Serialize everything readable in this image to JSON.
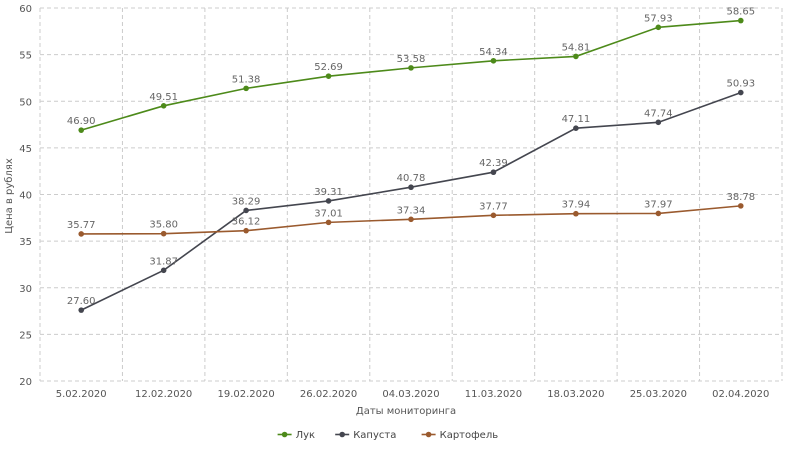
{
  "chart_data": {
    "type": "line",
    "title": "",
    "xlabel": "Даты мониторинга",
    "ylabel": "Цена в рублях",
    "ylim": [
      20,
      60
    ],
    "yticks": [
      20,
      25,
      30,
      35,
      40,
      45,
      50,
      55,
      60
    ],
    "grid": true,
    "legend_position": "bottom-center",
    "categories": [
      "5.02.2020",
      "12.02.2020",
      "19.02.2020",
      "26.02.2020",
      "04.03.2020",
      "11.03.2020",
      "18.03.2020",
      "25.03.2020",
      "02.04.2020"
    ],
    "series": [
      {
        "name": "Лук",
        "color": "#4d8a1a",
        "values": [
          46.9,
          49.51,
          51.38,
          52.69,
          53.58,
          54.34,
          54.81,
          57.93,
          58.65
        ],
        "labels": [
          "46.90",
          "49.51",
          "51.38",
          "52.69",
          "53.58",
          "54.34",
          "54.81",
          "57.93",
          "58.65"
        ]
      },
      {
        "name": "Капуста",
        "color": "#44464f",
        "values": [
          27.6,
          31.87,
          38.29,
          39.31,
          40.78,
          42.39,
          47.11,
          47.74,
          50.93
        ],
        "labels": [
          "27.60",
          "31.87",
          "38.29",
          "39.31",
          "40.78",
          "42.39",
          "47.11",
          "47.74",
          "50.93"
        ]
      },
      {
        "name": "Картофель",
        "color": "#9a5a2e",
        "values": [
          35.77,
          35.8,
          36.12,
          37.01,
          37.34,
          37.77,
          37.94,
          37.97,
          38.78
        ],
        "labels": [
          "35.77",
          "35.80",
          "36.12",
          "37.01",
          "37.34",
          "37.77",
          "37.94",
          "37.97",
          "38.78"
        ]
      }
    ]
  }
}
